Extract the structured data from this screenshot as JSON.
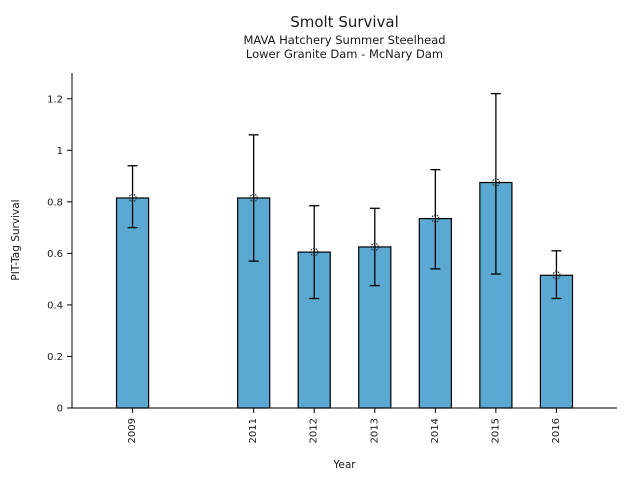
{
  "chart_data": {
    "type": "bar",
    "title": "Smolt Survival",
    "subtitle": [
      "MAVA Hatchery Summer Steelhead",
      "Lower Granite Dam - McNary Dam"
    ],
    "xlabel": "Year",
    "ylabel": "PIT-Tag Survival",
    "categories": [
      "2009",
      "2011",
      "2012",
      "2013",
      "2014",
      "2015",
      "2016"
    ],
    "x_numeric": [
      2009,
      2011,
      2012,
      2013,
      2014,
      2015,
      2016
    ],
    "values": [
      0.815,
      0.815,
      0.605,
      0.625,
      0.735,
      0.875,
      0.515
    ],
    "error_low": [
      0.7,
      0.57,
      0.425,
      0.475,
      0.54,
      0.52,
      0.425
    ],
    "error_high": [
      0.94,
      1.06,
      0.785,
      0.775,
      0.925,
      1.22,
      0.61
    ],
    "marker": "open-circle",
    "bar_color": "#5BA9D2",
    "bar_edge_color": "#000000",
    "error_color": "#000000",
    "xlim": [
      2008,
      2017
    ],
    "ylim": [
      0,
      1.3
    ],
    "yticks": [
      0,
      0.2,
      0.4,
      0.6,
      0.8,
      1,
      1.2
    ],
    "ytick_labels": [
      "0",
      "0.2",
      "0.4",
      "0.6",
      "0.8",
      "1",
      "1.2"
    ],
    "bar_width": 0.53,
    "grid": false,
    "legend": null
  }
}
